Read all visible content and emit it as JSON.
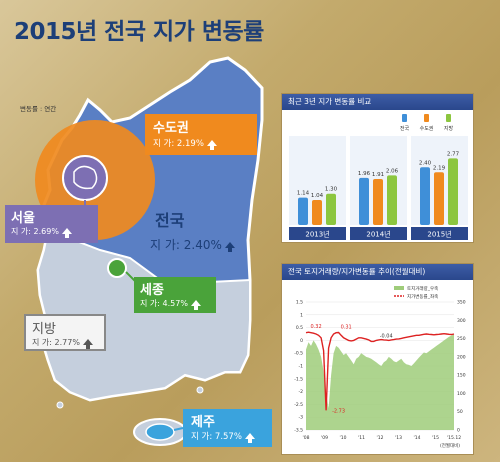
{
  "title": "2015년 전국 지가 변동률",
  "unit_note": "변동률 : 연간",
  "regions": {
    "sudo": {
      "name": "수도권",
      "value": "지  가: 2.19%"
    },
    "seoul": {
      "name": "서울",
      "value": "지  가: 2.69%"
    },
    "national": {
      "name": "전국",
      "value": "지  가: 2.40%"
    },
    "sejong": {
      "name": "세종",
      "value": "지  가: 4.57%"
    },
    "jibang": {
      "name": "지방",
      "value": "지  가: 2.77%"
    },
    "jeju": {
      "name": "제주",
      "value": "지  가: 7.57%"
    }
  },
  "colors": {
    "title": "#1d3f78",
    "national": "#3f8fd8",
    "sudo": "#f08a1e",
    "jibang": "#8cc63f",
    "sejong": "#4aa33a",
    "seoul": "#7d6fb3",
    "jeju": "#3aa3dd"
  },
  "chart_data": [
    {
      "type": "bar",
      "title": "최근 3년 지가 변동률 비교",
      "categories": [
        "2013년",
        "2014년",
        "2015년"
      ],
      "series": [
        {
          "name": "전국",
          "values": [
            1.14,
            1.96,
            2.4
          ]
        },
        {
          "name": "수도권",
          "values": [
            1.04,
            1.91,
            2.19
          ]
        },
        {
          "name": "지방",
          "values": [
            1.3,
            2.06,
            2.77
          ]
        }
      ],
      "ylim": [
        0,
        3.2
      ]
    },
    {
      "type": "line",
      "title": "전국 토지거래량/지가변동률 추이(전월대비)",
      "x_labels": [
        "'08",
        "'09",
        "'10",
        "'11",
        "'12",
        "'13",
        "'14",
        "'15",
        "'15.12"
      ],
      "x_note": "(전월대비)",
      "y_left_ticks": [
        "1.5",
        "1",
        "0.5",
        "0",
        "-0.5",
        "-1",
        "-1.5",
        "-2",
        "-2.5",
        "-3",
        "-3.5"
      ],
      "y_right_ticks": [
        "350",
        "300",
        "250",
        "200",
        "150",
        "100",
        "50",
        "0"
      ],
      "ylim_left": [
        -3.5,
        1.5
      ],
      "ylim_right": [
        0,
        350
      ],
      "series": [
        {
          "name": "토지거래량_우축",
          "axis": "right",
          "values": [
            220,
            240,
            230,
            245,
            235,
            220,
            200,
            160,
            100,
            60,
            150,
            210,
            230,
            225,
            215,
            205,
            210,
            200,
            190,
            180,
            195,
            200,
            210,
            205,
            200,
            198,
            195,
            190,
            185,
            180,
            175,
            185,
            190,
            200,
            195,
            188,
            185,
            190,
            195,
            185,
            180,
            178,
            175,
            182,
            190,
            198,
            205,
            212,
            210,
            215,
            220,
            225,
            230,
            235,
            240,
            245,
            250,
            255,
            258,
            262
          ]
        },
        {
          "name": "지가변동률_좌축",
          "axis": "left",
          "values": [
            0.3,
            0.32,
            0.3,
            0.28,
            0.25,
            0.2,
            0.1,
            -0.4,
            -2.73,
            -0.3,
            0.1,
            0.25,
            0.3,
            0.31,
            0.2,
            0.1,
            0.05,
            0.0,
            -0.02,
            0.0,
            0.05,
            0.1,
            0.1,
            0.08,
            0.05,
            0.02,
            -0.04,
            -0.04,
            0.0,
            0.02,
            0.03,
            0.02,
            0.01,
            0.0,
            0.02,
            0.03,
            0.05,
            0.06,
            0.08,
            0.1,
            0.12,
            0.14,
            0.16,
            0.18,
            0.2,
            0.2,
            0.22,
            0.24,
            0.25,
            0.24,
            0.23,
            0.22,
            0.23,
            0.24,
            0.25,
            0.26,
            0.25,
            0.24,
            0.23,
            0.25
          ]
        }
      ],
      "annotations": [
        "0.32",
        "0.31",
        "-0.04",
        "-2.73"
      ]
    }
  ]
}
